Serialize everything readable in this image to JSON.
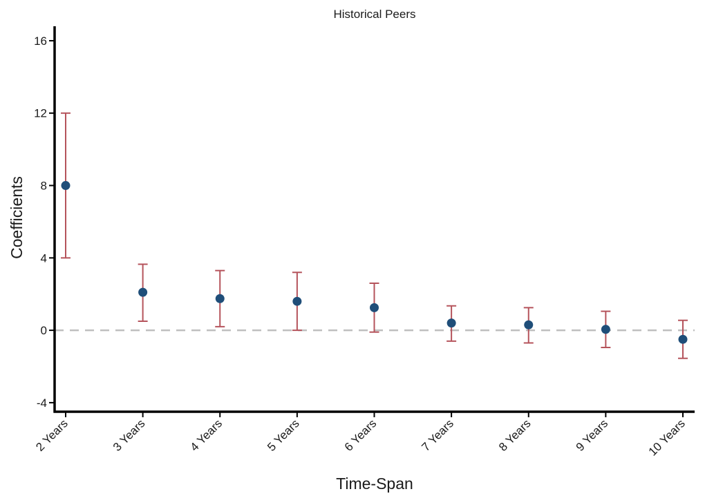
{
  "chart_data": {
    "type": "scatter",
    "title": "Historical Peers",
    "xlabel": "Time-Span",
    "ylabel": "Coefficients",
    "categories": [
      "2 Years",
      "3 Years",
      "4 Years",
      "5 Years",
      "6 Years",
      "7 Years",
      "8 Years",
      "9 Years",
      "10 Years"
    ],
    "series": [
      {
        "values": [
          8.0,
          2.1,
          1.75,
          1.6,
          1.25,
          0.4,
          0.3,
          0.05,
          -0.5
        ],
        "ci_lower": [
          4.0,
          0.5,
          0.2,
          0.0,
          -0.1,
          -0.6,
          -0.7,
          -0.95,
          -1.55
        ],
        "ci_upper": [
          12.0,
          3.65,
          3.3,
          3.2,
          2.6,
          1.35,
          1.25,
          1.05,
          0.55
        ]
      }
    ],
    "ylim": [
      -4.5,
      16.8
    ],
    "yticks": [
      -4,
      0,
      4,
      8,
      12,
      16
    ],
    "reference_line": 0,
    "grid": false,
    "colors": {
      "point": "#1f4e79",
      "errorbar": "#b5535b",
      "reference_line": "#bfbfbf",
      "axis": "#000000"
    }
  }
}
